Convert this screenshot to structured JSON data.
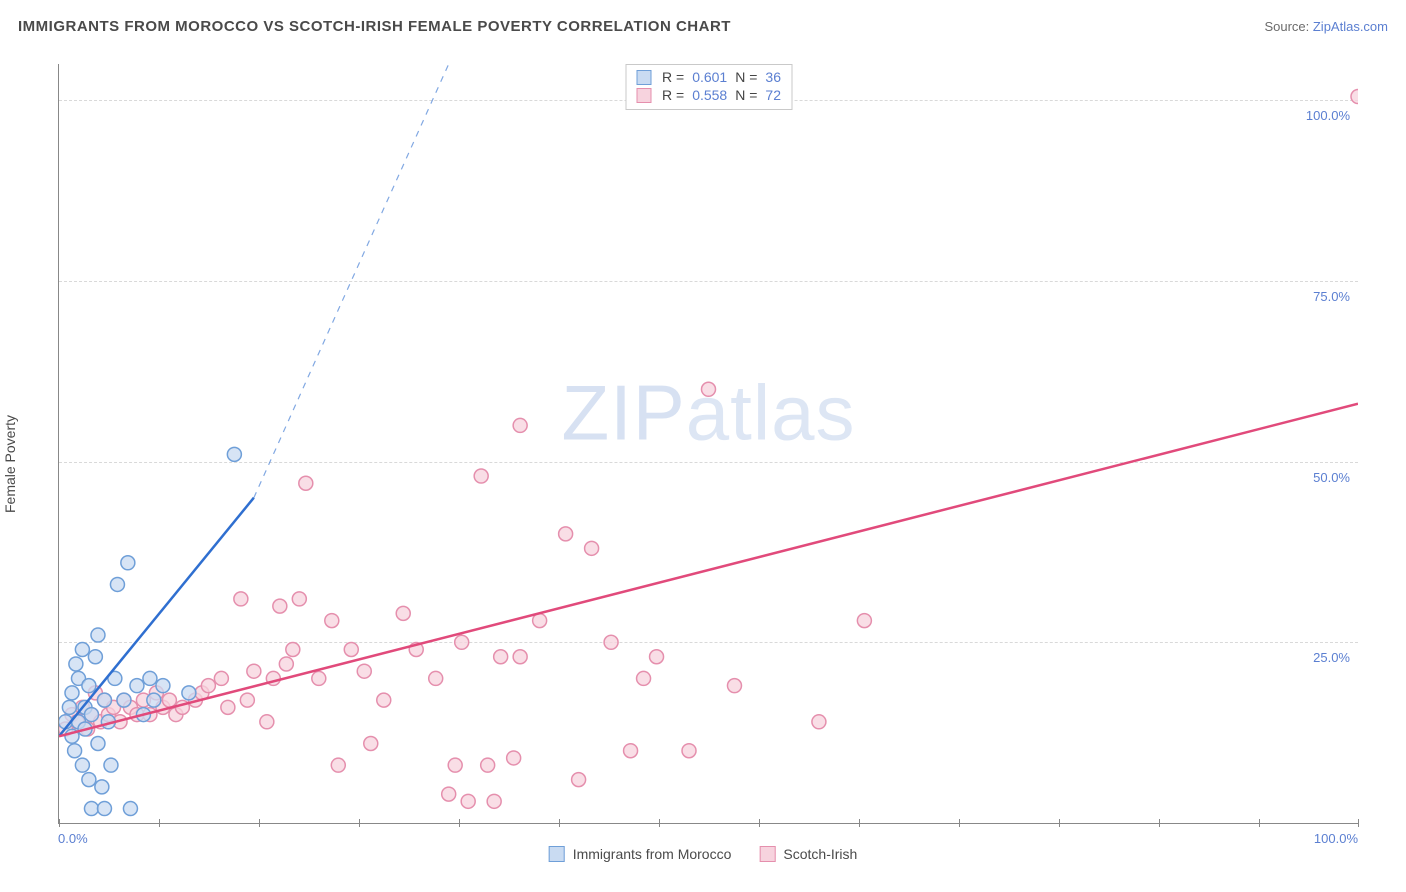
{
  "header": {
    "title": "IMMIGRANTS FROM MOROCCO VS SCOTCH-IRISH FEMALE POVERTY CORRELATION CHART",
    "source_label": "Source: ",
    "source_link": "ZipAtlas.com"
  },
  "chart": {
    "type": "scatter",
    "y_label": "Female Poverty",
    "x_min": 0,
    "x_max": 100,
    "y_min": 0,
    "y_max": 105,
    "x_ticks": [
      0,
      7.7,
      15.4,
      23.1,
      30.8,
      38.5,
      46.2,
      53.9,
      61.6,
      69.3,
      77,
      84.7,
      92.4,
      100
    ],
    "x_tick_labels": {
      "0": "0.0%",
      "100": "100.0%"
    },
    "y_gridlines": [
      25,
      50,
      75,
      100
    ],
    "y_tick_labels": {
      "25": "25.0%",
      "50": "50.0%",
      "75": "75.0%",
      "100": "100.0%"
    },
    "grid_color": "#d9d9d9",
    "axis_color": "#888888",
    "label_color": "#5b7fd1",
    "watermark": "ZIPatlas",
    "marker_radius": 7,
    "marker_stroke_width": 1.5,
    "trend_line_width": 2.5,
    "series": [
      {
        "key": "morocco",
        "label": "Immigrants from Morocco",
        "fill": "#c9dbf2",
        "stroke": "#6f9fd8",
        "line_color": "#2f6fd0",
        "r_value": "0.601",
        "n_value": "36",
        "trend": {
          "x1": 0,
          "y1": 12,
          "x2": 15,
          "y2": 45,
          "dash_to_x": 30,
          "dash_to_y": 105
        },
        "points": [
          [
            0.5,
            14
          ],
          [
            0.8,
            16
          ],
          [
            1.0,
            12
          ],
          [
            1.0,
            18
          ],
          [
            1.2,
            10
          ],
          [
            1.3,
            22
          ],
          [
            1.5,
            14
          ],
          [
            1.5,
            20
          ],
          [
            1.8,
            8
          ],
          [
            1.8,
            24
          ],
          [
            2.0,
            13
          ],
          [
            2.0,
            16
          ],
          [
            2.3,
            6
          ],
          [
            2.3,
            19
          ],
          [
            2.5,
            2
          ],
          [
            2.5,
            15
          ],
          [
            2.8,
            23
          ],
          [
            3.0,
            11
          ],
          [
            3.0,
            26
          ],
          [
            3.3,
            5
          ],
          [
            3.5,
            2
          ],
          [
            3.5,
            17
          ],
          [
            3.8,
            14
          ],
          [
            4.0,
            8
          ],
          [
            4.3,
            20
          ],
          [
            4.5,
            33
          ],
          [
            5.0,
            17
          ],
          [
            5.3,
            36
          ],
          [
            5.5,
            2
          ],
          [
            6.0,
            19
          ],
          [
            6.5,
            15
          ],
          [
            7.0,
            20
          ],
          [
            7.3,
            17
          ],
          [
            8.0,
            19
          ],
          [
            10.0,
            18
          ],
          [
            13.5,
            51
          ]
        ]
      },
      {
        "key": "scotchirish",
        "label": "Scotch-Irish",
        "fill": "#f7d3de",
        "stroke": "#e58fad",
        "line_color": "#e14a7b",
        "r_value": "0.558",
        "n_value": "72",
        "trend": {
          "x1": 0,
          "y1": 12,
          "x2": 100,
          "y2": 58
        },
        "points": [
          [
            0.5,
            13
          ],
          [
            1.0,
            15
          ],
          [
            1.4,
            14
          ],
          [
            1.8,
            16
          ],
          [
            2.2,
            13
          ],
          [
            2.5,
            15
          ],
          [
            2.8,
            18
          ],
          [
            3.2,
            14
          ],
          [
            3.5,
            17
          ],
          [
            3.8,
            15
          ],
          [
            4.2,
            16
          ],
          [
            4.7,
            14
          ],
          [
            5.0,
            17
          ],
          [
            5.5,
            16
          ],
          [
            6.0,
            15
          ],
          [
            6.5,
            17
          ],
          [
            7.0,
            15
          ],
          [
            7.5,
            18
          ],
          [
            8.0,
            16
          ],
          [
            8.5,
            17
          ],
          [
            9.0,
            15
          ],
          [
            9.5,
            16
          ],
          [
            10.5,
            17
          ],
          [
            11.0,
            18
          ],
          [
            11.5,
            19
          ],
          [
            12.5,
            20
          ],
          [
            13.0,
            16
          ],
          [
            14.0,
            31
          ],
          [
            14.5,
            17
          ],
          [
            15.0,
            21
          ],
          [
            16.0,
            14
          ],
          [
            16.5,
            20
          ],
          [
            17.0,
            30
          ],
          [
            17.5,
            22
          ],
          [
            18.0,
            24
          ],
          [
            18.5,
            31
          ],
          [
            19.0,
            47
          ],
          [
            20.0,
            20
          ],
          [
            21.0,
            28
          ],
          [
            21.5,
            8
          ],
          [
            22.5,
            24
          ],
          [
            23.5,
            21
          ],
          [
            24.0,
            11
          ],
          [
            25.0,
            17
          ],
          [
            26.5,
            29
          ],
          [
            27.5,
            24
          ],
          [
            29.0,
            20
          ],
          [
            30.0,
            4
          ],
          [
            30.5,
            8
          ],
          [
            31.0,
            25
          ],
          [
            31.5,
            3
          ],
          [
            32.5,
            48
          ],
          [
            33.0,
            8
          ],
          [
            33.5,
            3
          ],
          [
            34.0,
            23
          ],
          [
            35.0,
            9
          ],
          [
            35.5,
            55
          ],
          [
            37.0,
            28
          ],
          [
            39.0,
            40
          ],
          [
            40.0,
            6
          ],
          [
            41.0,
            38
          ],
          [
            42.5,
            25
          ],
          [
            44.0,
            10
          ],
          [
            45.0,
            20
          ],
          [
            46.0,
            23
          ],
          [
            48.5,
            10
          ],
          [
            50.0,
            60
          ],
          [
            52.0,
            19
          ],
          [
            62.0,
            28
          ],
          [
            58.5,
            14
          ],
          [
            100.0,
            100.5
          ],
          [
            35.5,
            23
          ]
        ]
      }
    ]
  },
  "legend_bottom": {
    "items": [
      {
        "swatch_fill": "#c9dbf2",
        "swatch_stroke": "#6f9fd8",
        "bind": "chart.series.0.label"
      },
      {
        "swatch_fill": "#f7d3de",
        "swatch_stroke": "#e58fad",
        "bind": "chart.series.1.label"
      }
    ]
  },
  "legend_top": {
    "r_label": "R =",
    "n_label": "N ="
  }
}
